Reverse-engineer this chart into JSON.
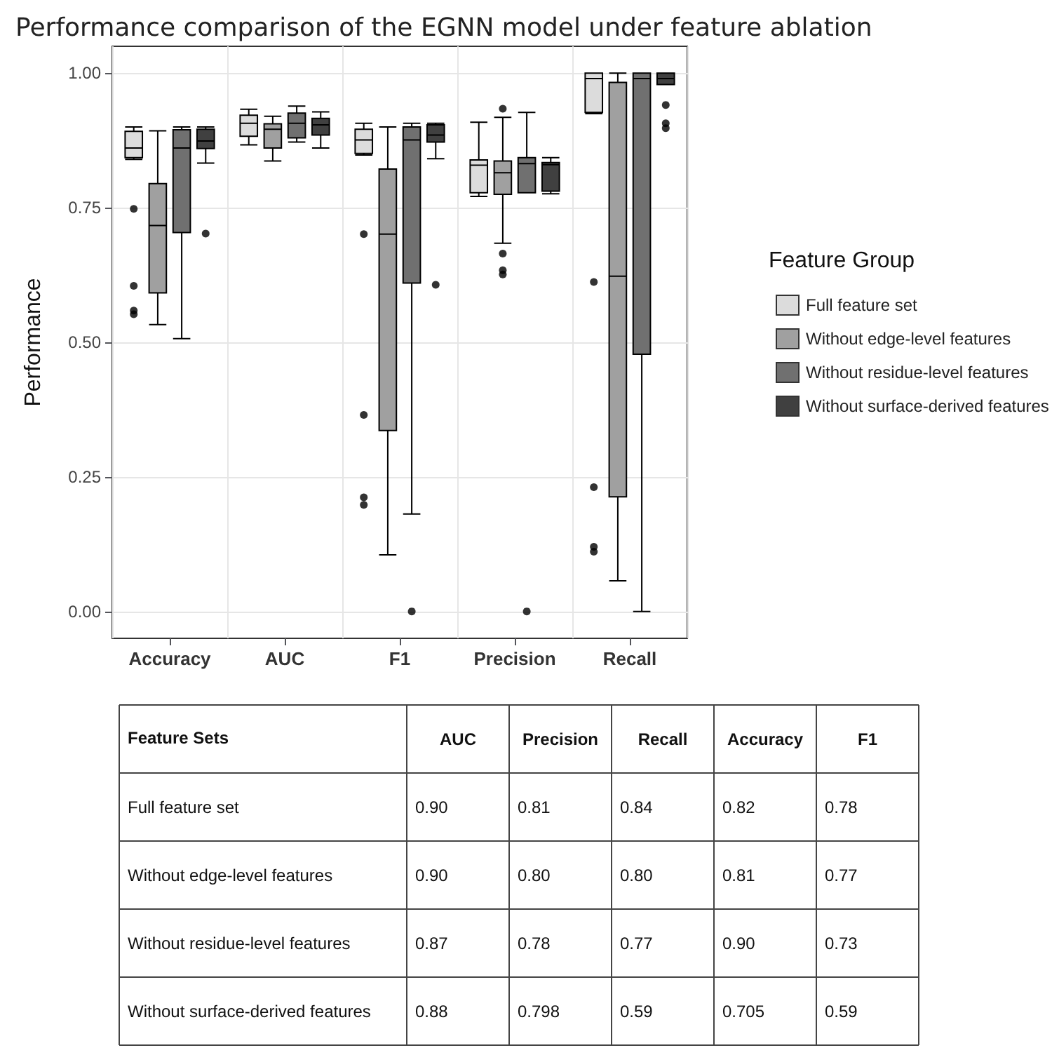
{
  "chart_data": [
    {
      "type": "box",
      "title": "Performance comparison of the EGNN model under feature ablation",
      "ylabel": "Performance",
      "legend_title": "Feature Group",
      "categories": [
        "Accuracy",
        "AUC",
        "F1",
        "Precision",
        "Recall"
      ],
      "ylim": [
        -0.05,
        1.05
      ],
      "yticks": [
        {
          "value": 0,
          "label": "0.00"
        },
        {
          "value": 0.25,
          "label": "0.25"
        },
        {
          "value": 0.5,
          "label": "0.50"
        },
        {
          "value": 0.75,
          "label": "0.75"
        },
        {
          "value": 1,
          "label": "1.00"
        }
      ],
      "grid": true,
      "legend": "right",
      "series": [
        {
          "name": "Full feature set",
          "color": "#dcdcdc",
          "boxes": [
            {
              "low": 0.84,
              "q1": 0.843,
              "median": 0.861,
              "q3": 0.892,
              "high": 0.9,
              "outliers": [
                0.748,
                0.605,
                0.559,
                0.552
              ]
            },
            {
              "low": 0.867,
              "q1": 0.883,
              "median": 0.907,
              "q3": 0.922,
              "high": 0.933
            },
            {
              "low": 0.848,
              "q1": 0.851,
              "median": 0.876,
              "q3": 0.896,
              "high": 0.907,
              "outliers": [
                0.701,
                0.365,
                0.212,
                0.198
              ]
            },
            {
              "low": 0.771,
              "q1": 0.778,
              "median": 0.829,
              "q3": 0.839,
              "high": 0.909
            },
            {
              "low": 0.925,
              "q1": 0.927,
              "median": 0.99,
              "q3": 1.0,
              "high": 1.0,
              "outliers": [
                0.612,
                0.231,
                0.12,
                0.111
              ]
            }
          ]
        },
        {
          "name": "Without edge-level features",
          "color": "#a0a0a0",
          "boxes": [
            {
              "low": 0.533,
              "q1": 0.592,
              "median": 0.717,
              "q3": 0.795,
              "high": 0.893
            },
            {
              "low": 0.837,
              "q1": 0.861,
              "median": 0.896,
              "q3": 0.906,
              "high": 0.92
            },
            {
              "low": 0.105,
              "q1": 0.336,
              "median": 0.701,
              "q3": 0.822,
              "high": 0.9
            },
            {
              "low": 0.684,
              "q1": 0.775,
              "median": 0.815,
              "q3": 0.837,
              "high": 0.918,
              "outliers": [
                0.934,
                0.665,
                0.634,
                0.626
              ]
            },
            {
              "low": 0.057,
              "q1": 0.213,
              "median": 0.623,
              "q3": 0.983,
              "high": 1.0
            }
          ]
        },
        {
          "name": "Without residue-level features",
          "color": "#707070",
          "boxes": [
            {
              "low": 0.507,
              "q1": 0.704,
              "median": 0.861,
              "q3": 0.895,
              "high": 0.9
            },
            {
              "low": 0.872,
              "q1": 0.88,
              "median": 0.907,
              "q3": 0.926,
              "high": 0.939
            },
            {
              "low": 0.181,
              "q1": 0.61,
              "median": 0.876,
              "q3": 0.9,
              "high": 0.907,
              "outliers": [
                0.0
              ]
            },
            {
              "low": 0.778,
              "q1": 0.778,
              "median": 0.832,
              "q3": 0.843,
              "high": 0.927,
              "outliers": [
                0.0
              ]
            },
            {
              "low": 0.0,
              "q1": 0.478,
              "median": 0.99,
              "q3": 1.0,
              "high": 1.0
            }
          ]
        },
        {
          "name": "Without surface-derived features",
          "color": "#404040",
          "boxes": [
            {
              "low": 0.833,
              "q1": 0.86,
              "median": 0.874,
              "q3": 0.896,
              "high": 0.9,
              "outliers": [
                0.702
              ]
            },
            {
              "low": 0.861,
              "q1": 0.885,
              "median": 0.904,
              "q3": 0.916,
              "high": 0.928
            },
            {
              "low": 0.841,
              "q1": 0.872,
              "median": 0.885,
              "q3": 0.904,
              "high": 0.907,
              "outliers": [
                0.607
              ]
            },
            {
              "low": 0.776,
              "q1": 0.781,
              "median": 0.83,
              "q3": 0.834,
              "high": 0.843
            },
            {
              "low": 0.979,
              "q1": 0.979,
              "median": 0.99,
              "q3": 1.0,
              "high": 1.0,
              "outliers": [
                0.941,
                0.907,
                0.898
              ]
            }
          ]
        }
      ]
    },
    {
      "type": "heatmap",
      "ylabel": "Feature Sets",
      "categories": [
        "AUC",
        "Precision",
        "Recall",
        "Accuracy",
        "F1"
      ],
      "y_categories": [
        "Full feature set",
        "Without edge-level features",
        "Without residue-level features",
        "Without surface-derived features"
      ],
      "cells": [
        [
          0.9,
          0.81,
          0.84,
          0.82,
          0.78
        ],
        [
          0.9,
          0.8,
          0.8,
          0.81,
          0.77
        ],
        [
          0.87,
          0.78,
          0.77,
          0.9,
          0.73
        ],
        [
          0.88,
          0.798,
          0.59,
          0.705,
          0.59
        ]
      ],
      "cell_labels": [
        [
          "0.90",
          "0.81",
          "0.84",
          "0.82",
          "0.78"
        ],
        [
          "0.90",
          "0.80",
          "0.80",
          "0.81",
          "0.77"
        ],
        [
          "0.87",
          "0.78",
          "0.77",
          "0.90",
          "0.73"
        ],
        [
          "0.88",
          "0.798",
          "0.59",
          "0.705",
          "0.59"
        ]
      ]
    }
  ]
}
